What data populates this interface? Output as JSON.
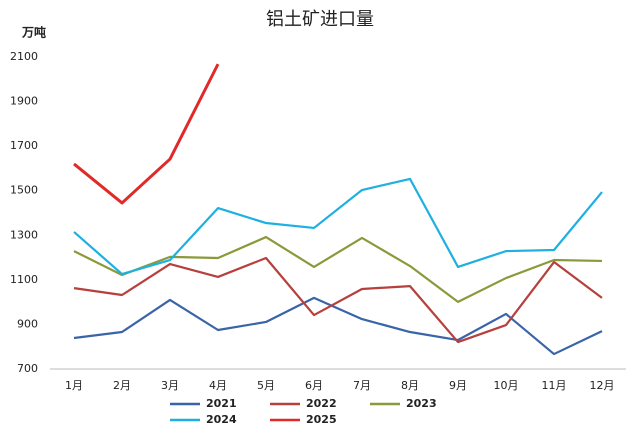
{
  "chart_data": {
    "type": "line",
    "title": "铝土矿进口量",
    "y_label": "万吨",
    "categories": [
      "1月",
      "2月",
      "3月",
      "4月",
      "5月",
      "6月",
      "7月",
      "8月",
      "9月",
      "10月",
      "11月",
      "12月"
    ],
    "series": [
      {
        "name": "2021",
        "color": "#3a64a8",
        "values": [
          839,
          866,
          1010,
          875,
          911,
          1019,
          924,
          866,
          830,
          947,
          767,
          870
        ]
      },
      {
        "name": "2022",
        "color": "#b5403c",
        "values": [
          1063,
          1032,
          1171,
          1113,
          1198,
          942,
          1059,
          1072,
          821,
          897,
          1180,
          1019
        ]
      },
      {
        "name": "2023",
        "color": "#8a9a3a",
        "values": [
          1229,
          1122,
          1203,
          1198,
          1292,
          1158,
          1288,
          1162,
          1001,
          1108,
          1189,
          1185
        ]
      },
      {
        "name": "2024",
        "color": "#1eb0e0",
        "values": [
          1315,
          1126,
          1189,
          1422,
          1355,
          1333,
          1503,
          1553,
          1158,
          1229,
          1234,
          1494
        ]
      },
      {
        "name": "2025",
        "color": "#e02a2a",
        "values": [
          1620,
          1445,
          1642,
          2068,
          null,
          null,
          null,
          null,
          null,
          null,
          null,
          null
        ]
      }
    ],
    "ylim": [
      700,
      2100
    ],
    "yticks": [
      700,
      900,
      1100,
      1300,
      1500,
      1700,
      1900,
      2100
    ],
    "grid": false,
    "legend": "bottom"
  }
}
